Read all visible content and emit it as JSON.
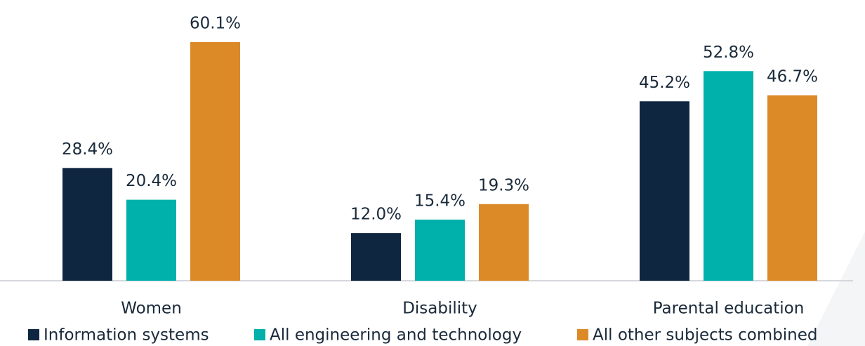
{
  "chart_data": {
    "type": "bar",
    "categories": [
      "Women",
      "Disability",
      "Parental education"
    ],
    "series": [
      {
        "name": "Information systems",
        "color": "#0f2640",
        "values": [
          28.4,
          12.0,
          45.2
        ],
        "value_labels": [
          "28.4%",
          "12.0%",
          "45.2%"
        ]
      },
      {
        "name": "All engineering and technology",
        "color": "#00b0aa",
        "values": [
          20.4,
          15.4,
          52.8
        ],
        "value_labels": [
          "20.4%",
          "15.4%",
          "52.8%"
        ]
      },
      {
        "name": "All other subjects combined",
        "color": "#dc8a28",
        "values": [
          60.1,
          19.3,
          46.7
        ],
        "value_labels": [
          "60.1%",
          "19.3%",
          "46.7%"
        ]
      }
    ],
    "ylim": [
      0,
      70
    ],
    "legend": "bottom"
  }
}
